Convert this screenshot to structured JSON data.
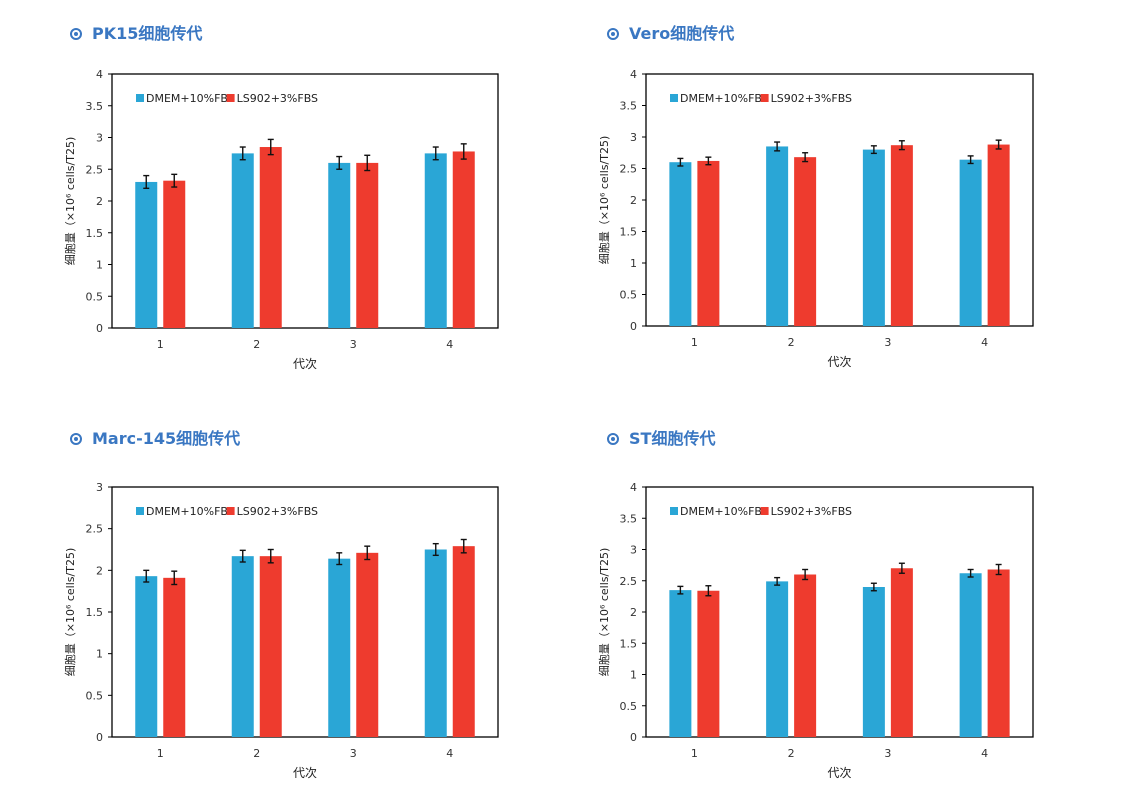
{
  "colors": {
    "title": "#3a77c2",
    "dmem": "#2aa6d6",
    "ls902": "#ee3b2e",
    "axis": "#000000"
  },
  "icons": {
    "title_bullet": "circle-bullet-icon"
  },
  "chart_data": [
    {
      "type": "bar",
      "title": "PK15细胞传代",
      "xlabel": "代次",
      "ylabel": "细胞量（×10⁶ cells/T25)",
      "categories": [
        "1",
        "2",
        "3",
        "4"
      ],
      "ylim": [
        0,
        4
      ],
      "yticks": [
        "0",
        "0.5",
        "1",
        "1.5",
        "2",
        "2.5",
        "3",
        "3.5",
        "4"
      ],
      "legend_position": "top-left",
      "series": [
        {
          "name": "DMEM+10%FBS",
          "color": "#2aa6d6",
          "values": [
            2.3,
            2.75,
            2.6,
            2.75
          ],
          "errors": [
            0.1,
            0.1,
            0.1,
            0.1
          ]
        },
        {
          "name": "LS902+3%FBS",
          "color": "#ee3b2e",
          "values": [
            2.32,
            2.85,
            2.6,
            2.78
          ],
          "errors": [
            0.1,
            0.12,
            0.12,
            0.12
          ]
        }
      ]
    },
    {
      "type": "bar",
      "title": "Vero细胞传代",
      "xlabel": "代次",
      "ylabel": "细胞量（×10⁶ cells/T25)",
      "categories": [
        "1",
        "2",
        "3",
        "4"
      ],
      "ylim": [
        0,
        4
      ],
      "yticks": [
        "0",
        "0.5",
        "1",
        "1.5",
        "2",
        "2.5",
        "3",
        "3.5",
        "4"
      ],
      "legend_position": "top-left",
      "series": [
        {
          "name": "DMEM+10%FBS",
          "color": "#2aa6d6",
          "values": [
            2.6,
            2.85,
            2.8,
            2.64
          ],
          "errors": [
            0.06,
            0.07,
            0.06,
            0.06
          ]
        },
        {
          "name": "LS902+3%FBS",
          "color": "#ee3b2e",
          "values": [
            2.62,
            2.68,
            2.87,
            2.88
          ],
          "errors": [
            0.06,
            0.07,
            0.07,
            0.07
          ]
        }
      ]
    },
    {
      "type": "bar",
      "title": "Marc-145细胞传代",
      "xlabel": "代次",
      "ylabel": "细胞量（×10⁶ cells/T25)",
      "categories": [
        "1",
        "2",
        "3",
        "4"
      ],
      "ylim": [
        0,
        3
      ],
      "yticks": [
        "0",
        "0.5",
        "1",
        "1.5",
        "2",
        "2.5",
        "3"
      ],
      "legend_position": "top-left",
      "series": [
        {
          "name": "DMEM+10%FBS",
          "color": "#2aa6d6",
          "values": [
            1.93,
            2.17,
            2.14,
            2.25
          ],
          "errors": [
            0.07,
            0.07,
            0.07,
            0.07
          ]
        },
        {
          "name": "LS902+3%FBS",
          "color": "#ee3b2e",
          "values": [
            1.91,
            2.17,
            2.21,
            2.29
          ],
          "errors": [
            0.08,
            0.08,
            0.08,
            0.08
          ]
        }
      ]
    },
    {
      "type": "bar",
      "title": "ST细胞传代",
      "xlabel": "代次",
      "ylabel": "细胞量（×10⁶ cells/T25)",
      "categories": [
        "1",
        "2",
        "3",
        "4"
      ],
      "ylim": [
        0,
        4
      ],
      "yticks": [
        "0",
        "0.5",
        "1",
        "1.5",
        "2",
        "2.5",
        "3",
        "3.5",
        "4"
      ],
      "legend_position": "top-left",
      "series": [
        {
          "name": "DMEM+10%FBS",
          "color": "#2aa6d6",
          "values": [
            2.35,
            2.49,
            2.4,
            2.62
          ],
          "errors": [
            0.06,
            0.06,
            0.06,
            0.06
          ]
        },
        {
          "name": "LS902+3%FBS",
          "color": "#ee3b2e",
          "values": [
            2.34,
            2.6,
            2.7,
            2.68
          ],
          "errors": [
            0.08,
            0.08,
            0.08,
            0.08
          ]
        }
      ]
    }
  ]
}
